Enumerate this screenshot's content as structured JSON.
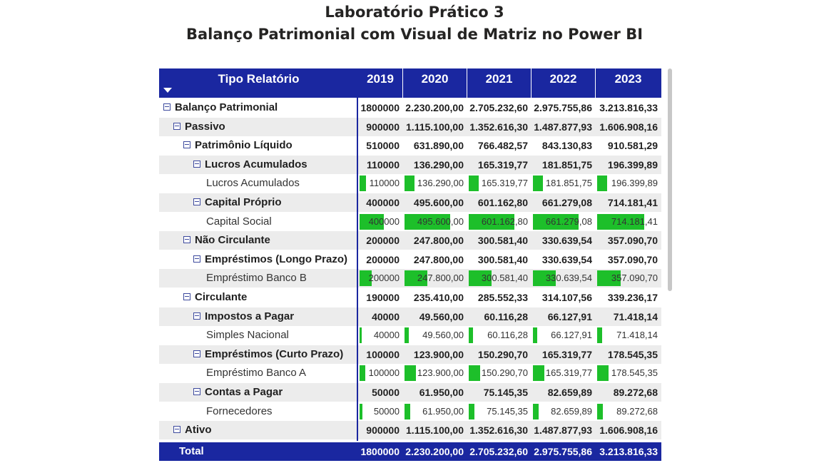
{
  "title": {
    "line1": "Laboratório Prático 3",
    "line2": "Balanço Patrimonial com Visual de Matriz no Power BI"
  },
  "matrix": {
    "header_label": "Tipo Relatório",
    "years": [
      "2019",
      "2020",
      "2021",
      "2022",
      "2023"
    ],
    "rows": [
      {
        "label": "Balanço Patrimonial",
        "level": 0,
        "bold": true,
        "expander": true,
        "shade": false,
        "values": [
          "1800000",
          "2.230.200,00",
          "2.705.232,60",
          "2.975.755,86",
          "3.213.816,33"
        ]
      },
      {
        "label": "Passivo",
        "level": 1,
        "bold": true,
        "expander": true,
        "shade": true,
        "values": [
          "900000",
          "1.115.100,00",
          "1.352.616,30",
          "1.487.877,93",
          "1.606.908,16"
        ]
      },
      {
        "label": "Patrimônio Líquido",
        "level": 2,
        "bold": true,
        "expander": true,
        "shade": false,
        "values": [
          "510000",
          "631.890,00",
          "766.482,57",
          "843.130,83",
          "910.581,29"
        ]
      },
      {
        "label": "Lucros Acumulados",
        "level": 3,
        "bold": true,
        "expander": true,
        "shade": true,
        "values": [
          "110000",
          "136.290,00",
          "165.319,77",
          "181.851,75",
          "196.399,89"
        ]
      },
      {
        "label": "Lucros Acumulados",
        "level": 4,
        "bold": false,
        "expander": false,
        "shade": false,
        "values": [
          "110000",
          "136.290,00",
          "165.319,77",
          "181.851,75",
          "196.399,89"
        ],
        "bar_fraction": [
          0.157,
          0.157,
          0.157,
          0.157,
          0.157
        ]
      },
      {
        "label": "Capital Próprio",
        "level": 3,
        "bold": true,
        "expander": true,
        "shade": true,
        "values": [
          "400000",
          "495.600,00",
          "601.162,80",
          "661.279,08",
          "714.181,41"
        ]
      },
      {
        "label": "Capital Social",
        "level": 4,
        "bold": false,
        "expander": false,
        "shade": false,
        "values": [
          "400000",
          "495.600,00",
          "601.162,80",
          "661.279,08",
          "714.181,41"
        ],
        "bar_fraction": [
          0.571,
          0.743,
          0.746,
          0.746,
          0.746
        ]
      },
      {
        "label": "Não Circulante",
        "level": 2,
        "bold": true,
        "expander": true,
        "shade": true,
        "values": [
          "200000",
          "247.800,00",
          "300.581,40",
          "330.639,54",
          "357.090,70"
        ]
      },
      {
        "label": "Empréstimos (Longo Prazo)",
        "level": 3,
        "bold": true,
        "expander": true,
        "shade": false,
        "values": [
          "200000",
          "247.800,00",
          "300.581,40",
          "330.639,54",
          "357.090,70"
        ]
      },
      {
        "label": "Empréstimo Banco B",
        "level": 4,
        "bold": false,
        "expander": false,
        "shade": true,
        "values": [
          "200000",
          "247.800,00",
          "300.581,40",
          "330.639,54",
          "357.090,70"
        ],
        "bar_fraction": [
          0.286,
          0.373,
          0.373,
          0.373,
          0.373
        ]
      },
      {
        "label": "Circulante",
        "level": 2,
        "bold": true,
        "expander": true,
        "shade": false,
        "values": [
          "190000",
          "235.410,00",
          "285.552,33",
          "314.107,56",
          "339.236,17"
        ]
      },
      {
        "label": "Impostos a Pagar",
        "level": 3,
        "bold": true,
        "expander": true,
        "shade": true,
        "values": [
          "40000",
          "49.560,00",
          "60.116,28",
          "66.127,91",
          "71.418,14"
        ]
      },
      {
        "label": "Simples Nacional",
        "level": 4,
        "bold": false,
        "expander": false,
        "shade": false,
        "values": [
          "40000",
          "49.560,00",
          "60.116,28",
          "66.127,91",
          "71.418,14"
        ],
        "bar_fraction": [
          0.057,
          0.075,
          0.075,
          0.075,
          0.075
        ]
      },
      {
        "label": "Empréstimos (Curto Prazo)",
        "level": 3,
        "bold": true,
        "expander": true,
        "shade": true,
        "values": [
          "100000",
          "123.900,00",
          "150.290,70",
          "165.319,77",
          "178.545,35"
        ]
      },
      {
        "label": "Empréstimo Banco A",
        "level": 4,
        "bold": false,
        "expander": false,
        "shade": false,
        "values": [
          "100000",
          "123.900,00",
          "150.290,70",
          "165.319,77",
          "178.545,35"
        ],
        "bar_fraction": [
          0.143,
          0.187,
          0.187,
          0.187,
          0.187
        ]
      },
      {
        "label": "Contas a Pagar",
        "level": 3,
        "bold": true,
        "expander": true,
        "shade": true,
        "values": [
          "50000",
          "61.950,00",
          "75.145,35",
          "82.659,89",
          "89.272,68"
        ]
      },
      {
        "label": "Fornecedores",
        "level": 4,
        "bold": false,
        "expander": false,
        "shade": false,
        "values": [
          "50000",
          "61.950,00",
          "75.145,35",
          "82.659,89",
          "89.272,68"
        ],
        "bar_fraction": [
          0.071,
          0.093,
          0.093,
          0.093,
          0.093
        ]
      },
      {
        "label": "Ativo",
        "level": 1,
        "bold": true,
        "expander": true,
        "shade": true,
        "values": [
          "900000",
          "1.115.100,00",
          "1.352.616,30",
          "1.487.877,93",
          "1.606.908,16"
        ]
      }
    ],
    "total": {
      "label": "Total",
      "values": [
        "1800000",
        "2.230.200,00",
        "2.705.232,60",
        "2.975.755,86",
        "3.213.816,33"
      ]
    },
    "colors": {
      "header_bg": "#1a27a0",
      "bar": "#1dbf2a",
      "row_shade": "#ececec"
    }
  }
}
